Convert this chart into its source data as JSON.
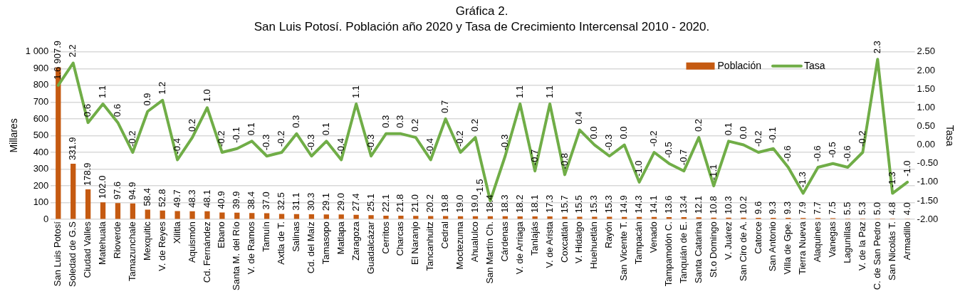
{
  "chart_data": {
    "type": "bar",
    "title": "Gráfica 2.",
    "subtitle": "San Luis Potosí. Población año 2020 y Tasa de Crecimiento Intercensal 2010 - 2020.",
    "ylabel": "Millares",
    "y2label": "Tasa",
    "categories": [
      "San Luis Potosí",
      "Soledad de G.S",
      "Ciudad Valles",
      "Matehuala",
      "Rioverde",
      "Tamazunchale",
      "Mexquitic",
      "V. de Reyes",
      "Xilitla",
      "Aquismón",
      "Cd. Fernández",
      "Ebano",
      "Santa M. del Río",
      "V. de Ramos",
      "Tamuín",
      "Axtla de T.",
      "Salinas",
      "Cd. del Maíz",
      "Tamasopo",
      "Matlapa",
      "Zaragoza",
      "Guadalcázar",
      "Cerritos",
      "Charcas",
      "El Naranjo",
      "Tancanhuitz",
      "Cedral",
      "Moctezuma",
      "Ahualulco",
      "San Martín Ch.",
      "Cárdenas",
      "V. de Arriaga",
      "Tanlajás",
      "V. de Arista",
      "Coxcatlán",
      "V. Hidalgo",
      "Huehuetlán",
      "Rayón",
      "San Vicente T.",
      "Tampacán",
      "Venado",
      "Tampamolón C.",
      "Tanquián de E.",
      "Santa Catarina",
      "St.o Domingo",
      "V. Juárez",
      "San Ciro de A.",
      "Catorce",
      "San Antonio",
      "Villa de Gpe.",
      "Tierra Nueva",
      "Alaquines",
      "Vanegas",
      "Lagunillas",
      "V. de la Paz",
      "C. de San Pedro",
      "San Nicolás T.",
      "Armadillo"
    ],
    "series": [
      {
        "name": "Población",
        "type": "bar",
        "color": "#c55a11",
        "values": [
          907.9,
          331.9,
          178.9,
          102.0,
          97.6,
          94.9,
          58.4,
          52.8,
          49.7,
          48.3,
          48.1,
          40.9,
          39.9,
          38.4,
          37.0,
          32.5,
          31.1,
          30.3,
          29.1,
          29.0,
          27.4,
          25.1,
          22.1,
          21.8,
          21.0,
          20.2,
          19.8,
          19.0,
          19.0,
          18.4,
          18.3,
          18.2,
          18.1,
          17.3,
          15.7,
          15.5,
          15.3,
          15.3,
          14.9,
          14.3,
          14.1,
          13.6,
          13.4,
          12.1,
          10.8,
          10.3,
          10.2,
          9.6,
          9.3,
          9.3,
          7.9,
          7.7,
          7.5,
          5.5,
          5.3,
          5.0,
          4.8,
          4.0
        ],
        "value_labels": [
          "907.9",
          "331.9",
          "178.9",
          "102.0",
          "97.6",
          "94.9",
          "58.4",
          "52.8",
          "49.7",
          "48.3",
          "48.1",
          "40.9",
          "39.9",
          "38.4",
          "37.0",
          "32.5",
          "31.1",
          "30.3",
          "29.1",
          "29.0",
          "27.4",
          "25.1",
          "22.1",
          "21.8",
          "21.0",
          "20.2",
          "19.8",
          "19.0",
          "19.0",
          "18.4",
          "18.3",
          "18.2",
          "18.1",
          "17.3",
          "15.7",
          "15.5",
          "15.3",
          "15.3",
          "14.9",
          "14.3",
          "14.1",
          "13.6",
          "13.4",
          "12.1",
          "10.8",
          "10.3",
          "10.2",
          "9.6",
          "9.3",
          "9.3",
          "7.9",
          "7.7",
          "7.5",
          "5.5",
          "5.3",
          "5.0",
          "4.8",
          "4.0"
        ]
      },
      {
        "name": "Tasa",
        "type": "line",
        "axis": "y2",
        "color": "#70ad47",
        "values": [
          1.6,
          2.2,
          0.6,
          1.1,
          0.6,
          -0.2,
          0.9,
          1.2,
          -0.4,
          0.2,
          1.0,
          -0.2,
          -0.1,
          0.1,
          -0.3,
          -0.2,
          0.3,
          -0.3,
          0.1,
          -0.4,
          1.1,
          -0.3,
          0.3,
          0.3,
          0.2,
          -0.4,
          0.7,
          -0.2,
          0.2,
          -1.5,
          -0.3,
          1.1,
          -0.7,
          1.1,
          -0.8,
          0.4,
          0.0,
          -0.3,
          0.0,
          -1.0,
          -0.2,
          -0.5,
          -0.7,
          0.2,
          -1.1,
          0.1,
          0.0,
          -0.2,
          -0.1,
          -0.6,
          -1.3,
          -0.6,
          -0.5,
          -0.6,
          -0.2,
          2.3,
          -1.3,
          -1.0
        ],
        "value_labels": [
          "1.6",
          "2.2",
          "0.6",
          "1.1",
          "0.6",
          "-0.2",
          "0.9",
          "1.2",
          "-0.4",
          "0.2",
          "1.0",
          "-0.2",
          "-0.1",
          "0.1",
          "-0.3",
          "-0.2",
          "0.3",
          "-0.3",
          "0.1",
          "-0.4",
          "1.1",
          "-0.3",
          "0.3",
          "0.3",
          "0.2",
          "-0.4",
          "0.7",
          "-0.2",
          "0.2",
          "-1.5",
          "-0.3",
          "1.1",
          "-0.7",
          "1.1",
          "-0.8",
          "0.4",
          "0.0",
          "-0.3",
          "0.0",
          "-1.0",
          "-0.2",
          "-0.5",
          "-0.7",
          "0.2",
          "-1.1",
          "0.1",
          "0.0",
          "-0.2",
          "-0.1",
          "-0.6",
          "-1.3",
          "-0.6",
          "-0.5",
          "-0.6",
          "-0.2",
          "2.3",
          "-1.3",
          "-1.0"
        ]
      }
    ],
    "ylim": [
      0,
      1000
    ],
    "yticks": [
      0,
      100,
      200,
      300,
      400,
      500,
      600,
      700,
      800,
      900,
      {
        "value": 1000,
        "label": "1 000"
      }
    ],
    "y2lim": [
      -2,
      2.5
    ],
    "y2ticks": [
      {
        "value": -2,
        "label": "-2.00"
      },
      {
        "value": -1.5,
        "label": "-1.50"
      },
      {
        "value": -1,
        "label": "-1.00"
      },
      {
        "value": -0.5,
        "label": "-0.50"
      },
      {
        "value": 0,
        "label": "0.00"
      },
      {
        "value": 0.5,
        "label": "0.50"
      },
      {
        "value": 1,
        "label": "1.00"
      },
      {
        "value": 1.5,
        "label": "1.50"
      },
      {
        "value": 2,
        "label": "2.00"
      },
      {
        "value": 2.5,
        "label": "2.50"
      }
    ],
    "grid": "y",
    "legend": "top right",
    "marker": "none",
    "line_style": "solid"
  }
}
